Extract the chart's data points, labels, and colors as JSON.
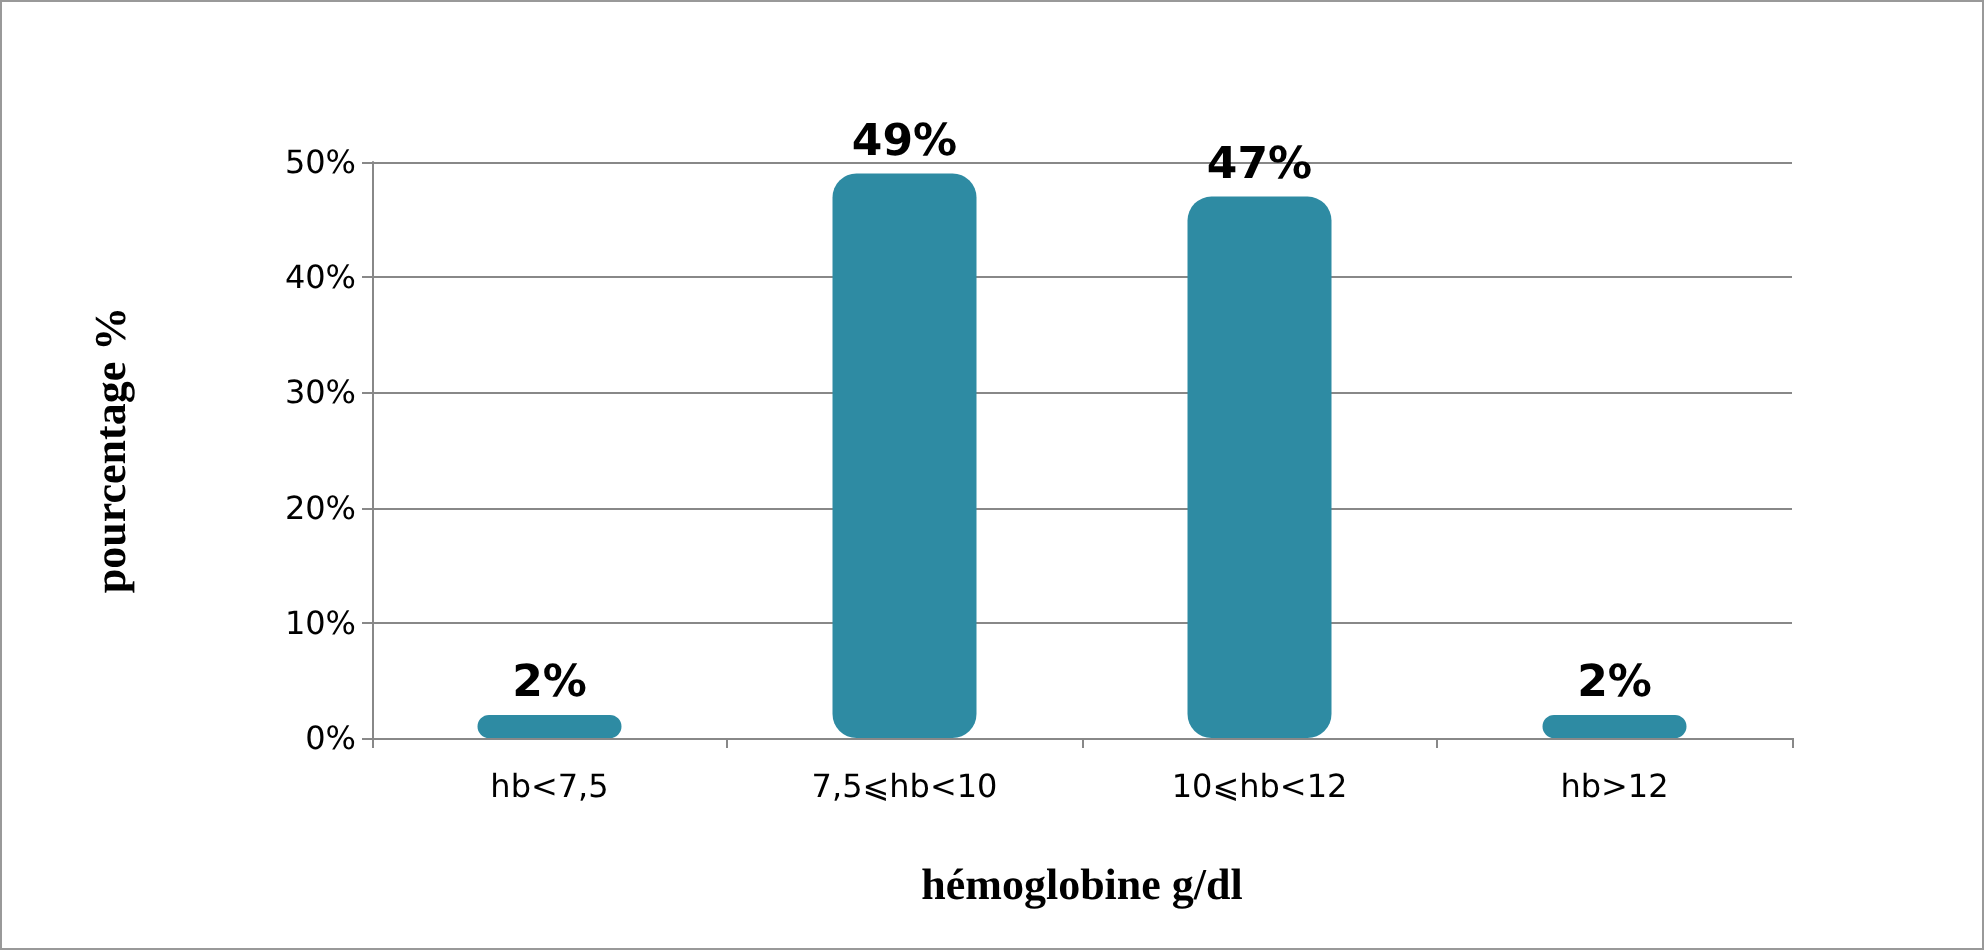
{
  "chart_data": {
    "type": "bar",
    "xlabel": "hémoglobine g/dl",
    "ylabel": "pourcentage %",
    "categories": [
      "hb<7,5",
      "7,5⩽hb<10",
      "10⩽hb<12",
      "hb>12"
    ],
    "values": [
      2,
      49,
      47,
      2
    ],
    "value_labels": [
      "2%",
      "49%",
      "47%",
      "2%"
    ],
    "color": "#2e8ba3",
    "ylim": [
      0,
      50
    ],
    "yticks": [
      {
        "value": 0,
        "label": "0%"
      },
      {
        "value": 10,
        "label": "10%"
      },
      {
        "value": 20,
        "label": "20%"
      },
      {
        "value": 30,
        "label": "30%"
      },
      {
        "value": 40,
        "label": "40%"
      },
      {
        "value": 50,
        "label": "50%"
      }
    ],
    "grid": "y"
  }
}
